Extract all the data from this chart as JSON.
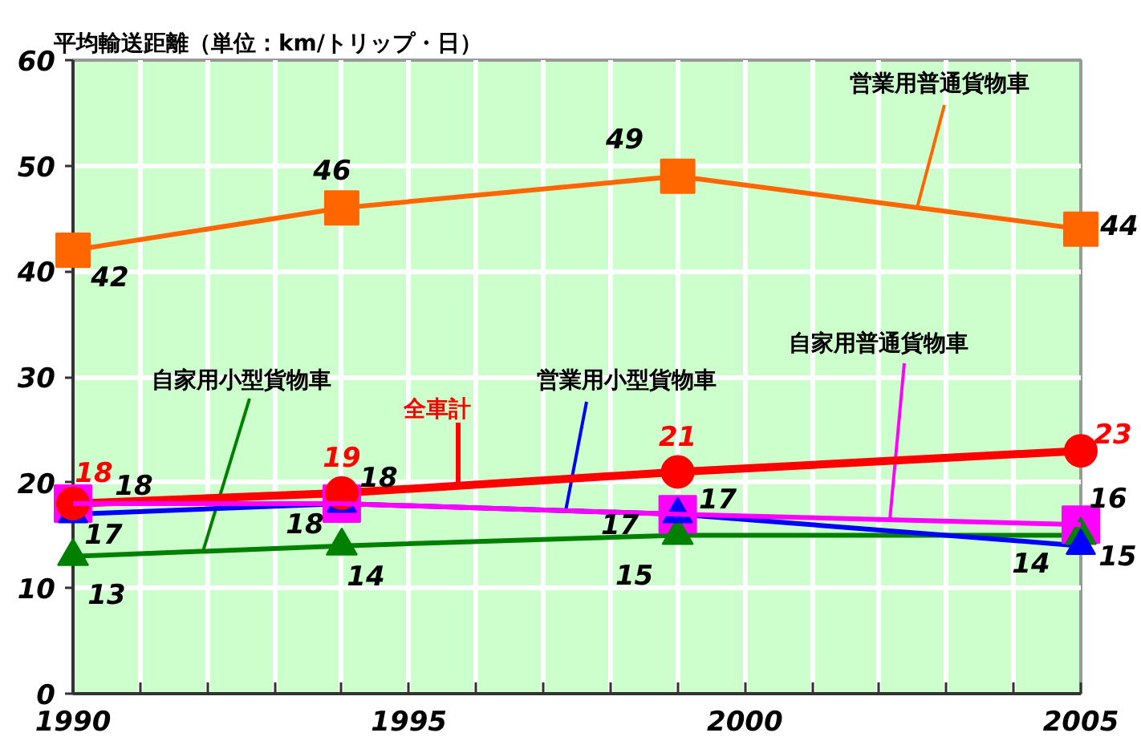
{
  "chart_data": {
    "type": "line",
    "title": "平均輸送距離（単位：km/トリップ・日）",
    "x": [
      1990,
      1994,
      1999,
      2005
    ],
    "xlim": [
      1990,
      2005
    ],
    "xticks": [
      1990,
      {
        "value": 1991,
        "label": null
      },
      {
        "value": 1992,
        "label": null
      },
      {
        "value": 1993,
        "label": null
      },
      {
        "value": 1994,
        "label": null
      },
      1995,
      {
        "value": 1996,
        "label": null
      },
      {
        "value": 1997,
        "label": null
      },
      {
        "value": 1998,
        "label": null
      },
      {
        "value": 1999,
        "label": null
      },
      2000,
      {
        "value": 2001,
        "label": null
      },
      {
        "value": 2002,
        "label": null
      },
      {
        "value": 2003,
        "label": null
      },
      {
        "value": 2004,
        "label": null
      },
      2005
    ],
    "ylim": [
      0,
      60
    ],
    "yticks": [
      0,
      10,
      20,
      30,
      40,
      50,
      60
    ],
    "grid": true,
    "data_labels": true,
    "series": [
      {
        "name": "自家用普通貨物車",
        "color": "#ff00ff",
        "marker": "square",
        "values": [
          18,
          18,
          17,
          16
        ]
      },
      {
        "name": "自家用小型貨物車",
        "color": "#008000",
        "marker": "triangle",
        "values": [
          13,
          14,
          15,
          15
        ]
      },
      {
        "name": "営業用小型貨物車",
        "color": "#0000ff",
        "marker": "triangle",
        "values": [
          17,
          18,
          17,
          14
        ]
      },
      {
        "name": "全車計",
        "color": "#ff0000",
        "marker": "circle",
        "values": [
          18,
          19,
          21,
          23
        ]
      },
      {
        "name": "営業用普通貨物車",
        "color": "#ff6600",
        "marker": "square",
        "values": [
          42,
          46,
          49,
          44
        ]
      }
    ]
  }
}
